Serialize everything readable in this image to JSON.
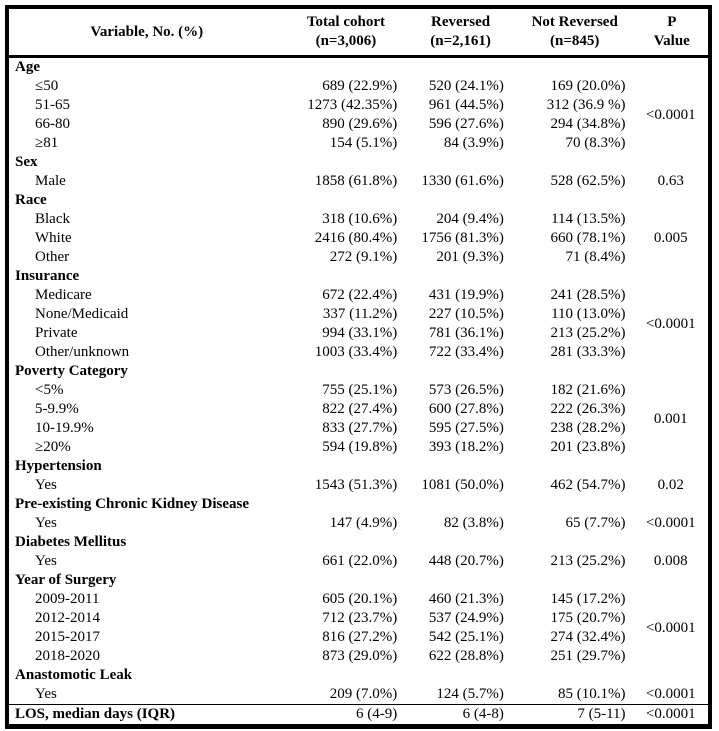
{
  "colors": {
    "text": "#000000",
    "background": "#ffffff",
    "border": "#000000"
  },
  "table": {
    "header": {
      "variable": "Variable, No. (%)",
      "total_line1": "Total cohort",
      "total_line2": "(n=3,006)",
      "reversed_line1": "Reversed",
      "reversed_line2": "(n=2,161)",
      "notreversed_line1": "Not Reversed",
      "notreversed_line2": "(n=845)",
      "p_line1": "P",
      "p_line2": "Value"
    },
    "rows": [
      {
        "t": "cat",
        "label": "Age"
      },
      {
        "t": "sub",
        "label": "≤50",
        "v": [
          "689 (22.9%)",
          "520 (24.1%)",
          "169 (20.0%)"
        ],
        "p": "<0.0001",
        "span": 4
      },
      {
        "t": "sub",
        "label": "51-65",
        "v": [
          "1273 (42.35%)",
          "961 (44.5%)",
          "312 (36.9 %)"
        ]
      },
      {
        "t": "sub",
        "label": "66-80",
        "v": [
          "890 (29.6%)",
          "596 (27.6%)",
          "294 (34.8%)"
        ]
      },
      {
        "t": "sub",
        "label": "≥81",
        "v": [
          "154 (5.1%)",
          "84 (3.9%)",
          "70 (8.3%)"
        ]
      },
      {
        "t": "cat",
        "label": "Sex"
      },
      {
        "t": "sub",
        "label": "Male",
        "v": [
          "1858 (61.8%)",
          "1330 (61.6%)",
          "528 (62.5%)"
        ],
        "p": "0.63",
        "span": 1
      },
      {
        "t": "cat",
        "label": "Race"
      },
      {
        "t": "sub",
        "label": "Black",
        "v": [
          "318 (10.6%)",
          "204 (9.4%)",
          "114 (13.5%)"
        ],
        "p": "0.005",
        "span": 3
      },
      {
        "t": "sub",
        "label": "White",
        "v": [
          "2416 (80.4%)",
          "1756 (81.3%)",
          "660 (78.1%)"
        ]
      },
      {
        "t": "sub",
        "label": "Other",
        "v": [
          "272 (9.1%)",
          "201 (9.3%)",
          "71 (8.4%)"
        ]
      },
      {
        "t": "cat",
        "label": "Insurance"
      },
      {
        "t": "sub",
        "label": "Medicare",
        "v": [
          "672 (22.4%)",
          "431 (19.9%)",
          "241 (28.5%)"
        ],
        "p": "<0.0001",
        "span": 4
      },
      {
        "t": "sub",
        "label": "None/Medicaid",
        "v": [
          "337 (11.2%)",
          "227 (10.5%)",
          "110 (13.0%)"
        ]
      },
      {
        "t": "sub",
        "label": "Private",
        "v": [
          "994 (33.1%)",
          "781 (36.1%)",
          "213 (25.2%)"
        ]
      },
      {
        "t": "sub",
        "label": "Other/unknown",
        "v": [
          "1003 (33.4%)",
          "722 (33.4%)",
          "281 (33.3%)"
        ]
      },
      {
        "t": "cat",
        "label": "Poverty Category"
      },
      {
        "t": "sub",
        "label": "<5%",
        "v": [
          "755 (25.1%)",
          "573 (26.5%)",
          "182 (21.6%)"
        ],
        "p": "0.001",
        "span": 4
      },
      {
        "t": "sub",
        "label": "5-9.9%",
        "v": [
          "822 (27.4%)",
          "600 (27.8%)",
          "222 (26.3%)"
        ]
      },
      {
        "t": "sub",
        "label": "10-19.9%",
        "v": [
          "833 (27.7%)",
          "595 (27.5%)",
          "238 (28.2%)"
        ]
      },
      {
        "t": "sub",
        "label": "≥20%",
        "v": [
          "594 (19.8%)",
          "393 (18.2%)",
          "201 (23.8%)"
        ]
      },
      {
        "t": "cat",
        "label": "Hypertension"
      },
      {
        "t": "sub",
        "label": "Yes",
        "v": [
          "1543 (51.3%)",
          "1081 (50.0%)",
          "462 (54.7%)"
        ],
        "p": "0.02",
        "span": 1
      },
      {
        "t": "cat",
        "label": "Pre-existing Chronic Kidney Disease"
      },
      {
        "t": "sub",
        "label": "Yes",
        "v": [
          "147 (4.9%)",
          "82 (3.8%)",
          "65 (7.7%)"
        ],
        "p": "<0.0001",
        "span": 1
      },
      {
        "t": "cat",
        "label": "Diabetes Mellitus"
      },
      {
        "t": "sub",
        "label": "Yes",
        "v": [
          "661 (22.0%)",
          "448 (20.7%)",
          "213 (25.2%)"
        ],
        "p": "0.008",
        "span": 1
      },
      {
        "t": "cat",
        "label": "Year of Surgery"
      },
      {
        "t": "sub",
        "label": "2009-2011",
        "v": [
          "605 (20.1%)",
          "460 (21.3%)",
          "145 (17.2%)"
        ],
        "p": "<0.0001",
        "span": 4
      },
      {
        "t": "sub",
        "label": "2012-2014",
        "v": [
          "712 (23.7%)",
          "537 (24.9%)",
          "175 (20.7%)"
        ]
      },
      {
        "t": "sub",
        "label": "2015-2017",
        "v": [
          "816 (27.2%)",
          "542 (25.1%)",
          "274 (32.4%)"
        ]
      },
      {
        "t": "sub",
        "label": "2018-2020",
        "v": [
          "873 (29.0%)",
          "622 (28.8%)",
          "251 (29.7%)"
        ]
      },
      {
        "t": "cat",
        "label": "Anastomotic Leak"
      },
      {
        "t": "sub",
        "label": "Yes",
        "v": [
          "209 (7.0%)",
          "124 (5.7%)",
          "85 (10.1%)"
        ],
        "p": "<0.0001",
        "span": 1
      },
      {
        "t": "los",
        "label": "LOS, median days (IQR)",
        "v": [
          "6 (4-9)",
          "6 (4-8)",
          "7 (5-11)"
        ],
        "p": "<0.0001",
        "span": 1
      }
    ]
  }
}
